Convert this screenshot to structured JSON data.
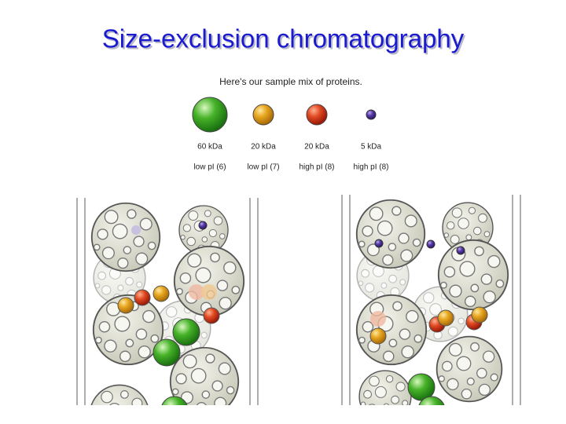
{
  "title": "Size-exclusion chromatography",
  "caption": "Here's our sample mix of proteins.",
  "proteins": [
    {
      "size": "60 kDa",
      "pi": "low pI (6)"
    },
    {
      "size": "20 kDa",
      "pi": "low pI (7)"
    },
    {
      "size": "20 kDa",
      "pi": "high pI (8)"
    },
    {
      "size": "5 kDa",
      "pi": "high pI (8)"
    }
  ]
}
